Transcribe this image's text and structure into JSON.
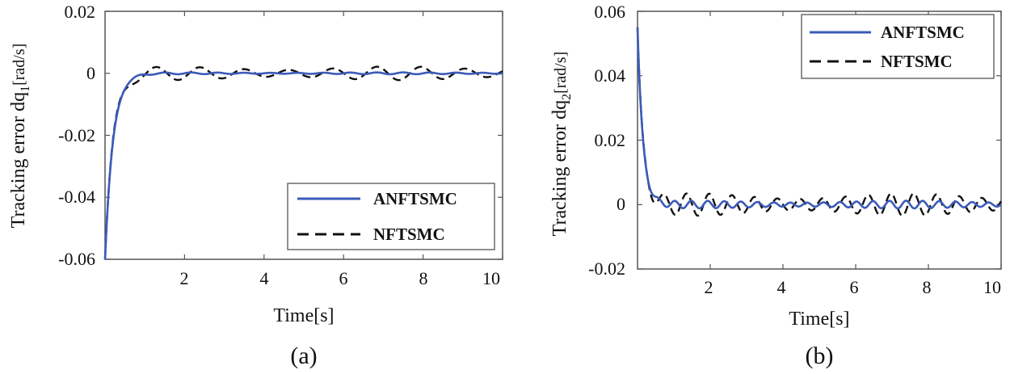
{
  "colors": {
    "anftsmc": "#3a5bb8",
    "nftsmc": "#111111",
    "axis": "#555555"
  },
  "chart_data": [
    {
      "type": "line",
      "panel_label": "(a)",
      "xlabel": "Time[s]",
      "ylabel_main": "Tracking error dq",
      "ylabel_sub": "1",
      "ylabel_unit": "[rad/s]",
      "xlim": [
        0,
        10
      ],
      "ylim": [
        -0.06,
        0.02
      ],
      "xticks": [
        2,
        4,
        6,
        8,
        10
      ],
      "xtick_labels": [
        "2",
        "4",
        "6",
        "8",
        "10"
      ],
      "yticks": [
        0.02,
        0,
        -0.02,
        -0.04,
        -0.06
      ],
      "ytick_labels": [
        "0.02",
        "0",
        "-0.02",
        "-0.04",
        "-0.06"
      ],
      "legend": {
        "placement": "lower-right",
        "entries": [
          "ANFTSMC",
          "NFTSMC"
        ]
      },
      "series": [
        {
          "name": "ANFTSMC",
          "style": "solid",
          "initial": -0.06,
          "tau": 0.2,
          "ripple": 0.0003,
          "freq": 1.5
        },
        {
          "name": "NFTSMC",
          "style": "dashed",
          "initial": -0.06,
          "tau": 0.2,
          "ripple": 0.0022,
          "freq": 0.9
        }
      ]
    },
    {
      "type": "line",
      "panel_label": "(b)",
      "xlabel": "Time[s]",
      "ylabel_main": "Tracking error dq",
      "ylabel_sub": "2",
      "ylabel_unit": "[rad/s]",
      "xlim": [
        0,
        10
      ],
      "ylim": [
        -0.02,
        0.06
      ],
      "xticks": [
        2,
        4,
        6,
        8,
        10
      ],
      "xtick_labels": [
        "2",
        "4",
        "6",
        "8",
        "10"
      ],
      "yticks": [
        0.06,
        0.04,
        0.02,
        0,
        -0.02
      ],
      "ytick_labels": [
        "0.06",
        "0.04",
        "0.02",
        "0",
        "-0.02"
      ],
      "legend": {
        "placement": "top-right",
        "entries": [
          "ANFTSMC",
          "NFTSMC"
        ]
      },
      "series": [
        {
          "name": "ANFTSMC",
          "style": "solid",
          "initial": 0.055,
          "tau": 0.15,
          "ripple": 0.0012,
          "freq": 2.2
        },
        {
          "name": "NFTSMC",
          "style": "dashed",
          "initial": 0.055,
          "tau": 0.15,
          "ripple": 0.0035,
          "freq": 1.6
        }
      ]
    }
  ]
}
